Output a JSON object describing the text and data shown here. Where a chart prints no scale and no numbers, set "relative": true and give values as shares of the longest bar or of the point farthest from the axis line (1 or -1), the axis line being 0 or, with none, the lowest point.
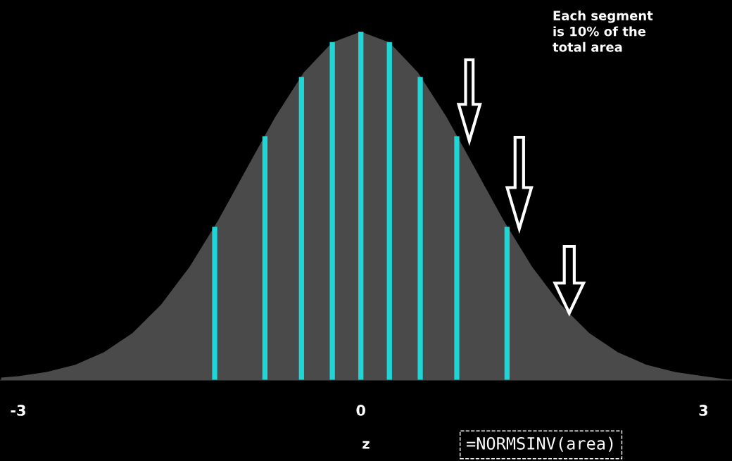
{
  "chart_data": {
    "type": "area",
    "relative": true,
    "xlabel": "z",
    "xlim": [
      -3.16,
      3.25
    ],
    "xticks": [
      -3,
      0,
      3
    ],
    "grid": false,
    "series": [
      {
        "color": "#4a4a4a",
        "x": [
          -3.15,
          -3,
          -2.75,
          -2.5,
          -2.25,
          -2,
          -1.75,
          -1.5,
          -1.25,
          -1,
          -0.75,
          -0.5,
          -0.25,
          0,
          0.25,
          0.5,
          0.75,
          1,
          1.25,
          1.5,
          1.75,
          2,
          2.25,
          2.5,
          2.75,
          3,
          3.25
        ],
        "values": [
          0.007,
          0.011,
          0.023,
          0.044,
          0.08,
          0.135,
          0.216,
          0.325,
          0.458,
          0.607,
          0.755,
          0.883,
          0.969,
          1,
          0.969,
          0.883,
          0.755,
          0.607,
          0.458,
          0.325,
          0.216,
          0.135,
          0.08,
          0.044,
          0.023,
          0.011,
          0
        ]
      },
      {
        "type": "bar",
        "color": "#1ed6d6",
        "x": [
          -1.28,
          -0.84,
          -0.52,
          -0.25,
          0,
          0.25,
          0.52,
          0.84,
          1.28
        ],
        "values": [
          0.44,
          0.7,
          0.87,
          0.97,
          1,
          0.97,
          0.87,
          0.7,
          0.44
        ]
      }
    ],
    "annotations": [
      "Each segment\nis 10% of the\ntotal area",
      "=NORMSINV(area)"
    ]
  }
}
